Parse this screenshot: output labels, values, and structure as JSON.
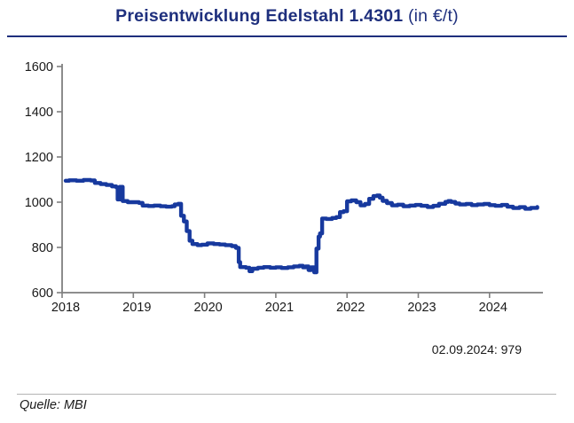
{
  "header": {
    "title_bold": "Preisentwicklung Edelstahl 1.4301",
    "title_suffix": " (in €/t)"
  },
  "annotation": "02.09.2024: 979",
  "source": "Quelle: MBI",
  "colors": {
    "title": "#1e2f7d",
    "line": "#17399e",
    "axis": "#7f7f7f",
    "tick_text": "#1a1a1a"
  },
  "chart_data": {
    "type": "line",
    "title": "Preisentwicklung Edelstahl 1.4301 (in €/t)",
    "xlabel": "",
    "ylabel": "",
    "xlim": [
      2018,
      2024.75
    ],
    "ylim": [
      600,
      1600
    ],
    "x_ticks": [
      2018,
      2019,
      2020,
      2021,
      2022,
      2023,
      2024
    ],
    "y_ticks": [
      600,
      800,
      1000,
      1200,
      1400,
      1600
    ],
    "grid": false,
    "legend": "none",
    "interpolation": "step-after",
    "last_point_label": "02.09.2024: 979",
    "series": [
      {
        "name": "Edelstahl 1.4301 Preis in €/t",
        "points": [
          [
            2018.05,
            1095
          ],
          [
            2018.1,
            1097
          ],
          [
            2018.2,
            1095
          ],
          [
            2018.3,
            1098
          ],
          [
            2018.4,
            1096
          ],
          [
            2018.46,
            1085
          ],
          [
            2018.54,
            1080
          ],
          [
            2018.62,
            1076
          ],
          [
            2018.7,
            1070
          ],
          [
            2018.76,
            1066
          ],
          [
            2018.78,
            1012
          ],
          [
            2018.81,
            1068
          ],
          [
            2018.85,
            1005
          ],
          [
            2018.92,
            1000
          ],
          [
            2019.0,
            1000
          ],
          [
            2019.08,
            997
          ],
          [
            2019.13,
            985
          ],
          [
            2019.21,
            983
          ],
          [
            2019.29,
            985
          ],
          [
            2019.38,
            982
          ],
          [
            2019.46,
            980
          ],
          [
            2019.54,
            982
          ],
          [
            2019.58,
            990
          ],
          [
            2019.63,
            993
          ],
          [
            2019.67,
            940
          ],
          [
            2019.71,
            915
          ],
          [
            2019.75,
            872
          ],
          [
            2019.79,
            830
          ],
          [
            2019.83,
            815
          ],
          [
            2019.9,
            810
          ],
          [
            2019.96,
            812
          ],
          [
            2020.04,
            818
          ],
          [
            2020.13,
            815
          ],
          [
            2020.21,
            813
          ],
          [
            2020.29,
            810
          ],
          [
            2020.38,
            806
          ],
          [
            2020.44,
            798
          ],
          [
            2020.48,
            735
          ],
          [
            2020.5,
            713
          ],
          [
            2020.58,
            710
          ],
          [
            2020.63,
            695
          ],
          [
            2020.67,
            706
          ],
          [
            2020.75,
            710
          ],
          [
            2020.83,
            713
          ],
          [
            2020.92,
            710
          ],
          [
            2021.0,
            712
          ],
          [
            2021.08,
            709
          ],
          [
            2021.17,
            712
          ],
          [
            2021.25,
            716
          ],
          [
            2021.33,
            719
          ],
          [
            2021.38,
            712
          ],
          [
            2021.42,
            716
          ],
          [
            2021.46,
            700
          ],
          [
            2021.5,
            712
          ],
          [
            2021.54,
            690
          ],
          [
            2021.57,
            795
          ],
          [
            2021.6,
            848
          ],
          [
            2021.62,
            862
          ],
          [
            2021.65,
            928
          ],
          [
            2021.71,
            926
          ],
          [
            2021.79,
            930
          ],
          [
            2021.85,
            934
          ],
          [
            2021.9,
            956
          ],
          [
            2021.95,
            960
          ],
          [
            2022.0,
            1004
          ],
          [
            2022.06,
            1008
          ],
          [
            2022.13,
            1000
          ],
          [
            2022.19,
            986
          ],
          [
            2022.25,
            992
          ],
          [
            2022.31,
            1015
          ],
          [
            2022.37,
            1027
          ],
          [
            2022.42,
            1030
          ],
          [
            2022.46,
            1020
          ],
          [
            2022.5,
            1006
          ],
          [
            2022.56,
            996
          ],
          [
            2022.63,
            986
          ],
          [
            2022.71,
            989
          ],
          [
            2022.79,
            982
          ],
          [
            2022.88,
            985
          ],
          [
            2022.96,
            988
          ],
          [
            2023.04,
            984
          ],
          [
            2023.13,
            979
          ],
          [
            2023.21,
            984
          ],
          [
            2023.29,
            993
          ],
          [
            2023.38,
            1001
          ],
          [
            2023.42,
            1005
          ],
          [
            2023.46,
            1001
          ],
          [
            2023.52,
            994
          ],
          [
            2023.58,
            990
          ],
          [
            2023.67,
            992
          ],
          [
            2023.75,
            987
          ],
          [
            2023.83,
            990
          ],
          [
            2023.92,
            992
          ],
          [
            2024.0,
            987
          ],
          [
            2024.08,
            984
          ],
          [
            2024.17,
            988
          ],
          [
            2024.25,
            980
          ],
          [
            2024.33,
            974
          ],
          [
            2024.42,
            978
          ],
          [
            2024.5,
            971
          ],
          [
            2024.58,
            975
          ],
          [
            2024.67,
            979
          ]
        ]
      }
    ]
  }
}
